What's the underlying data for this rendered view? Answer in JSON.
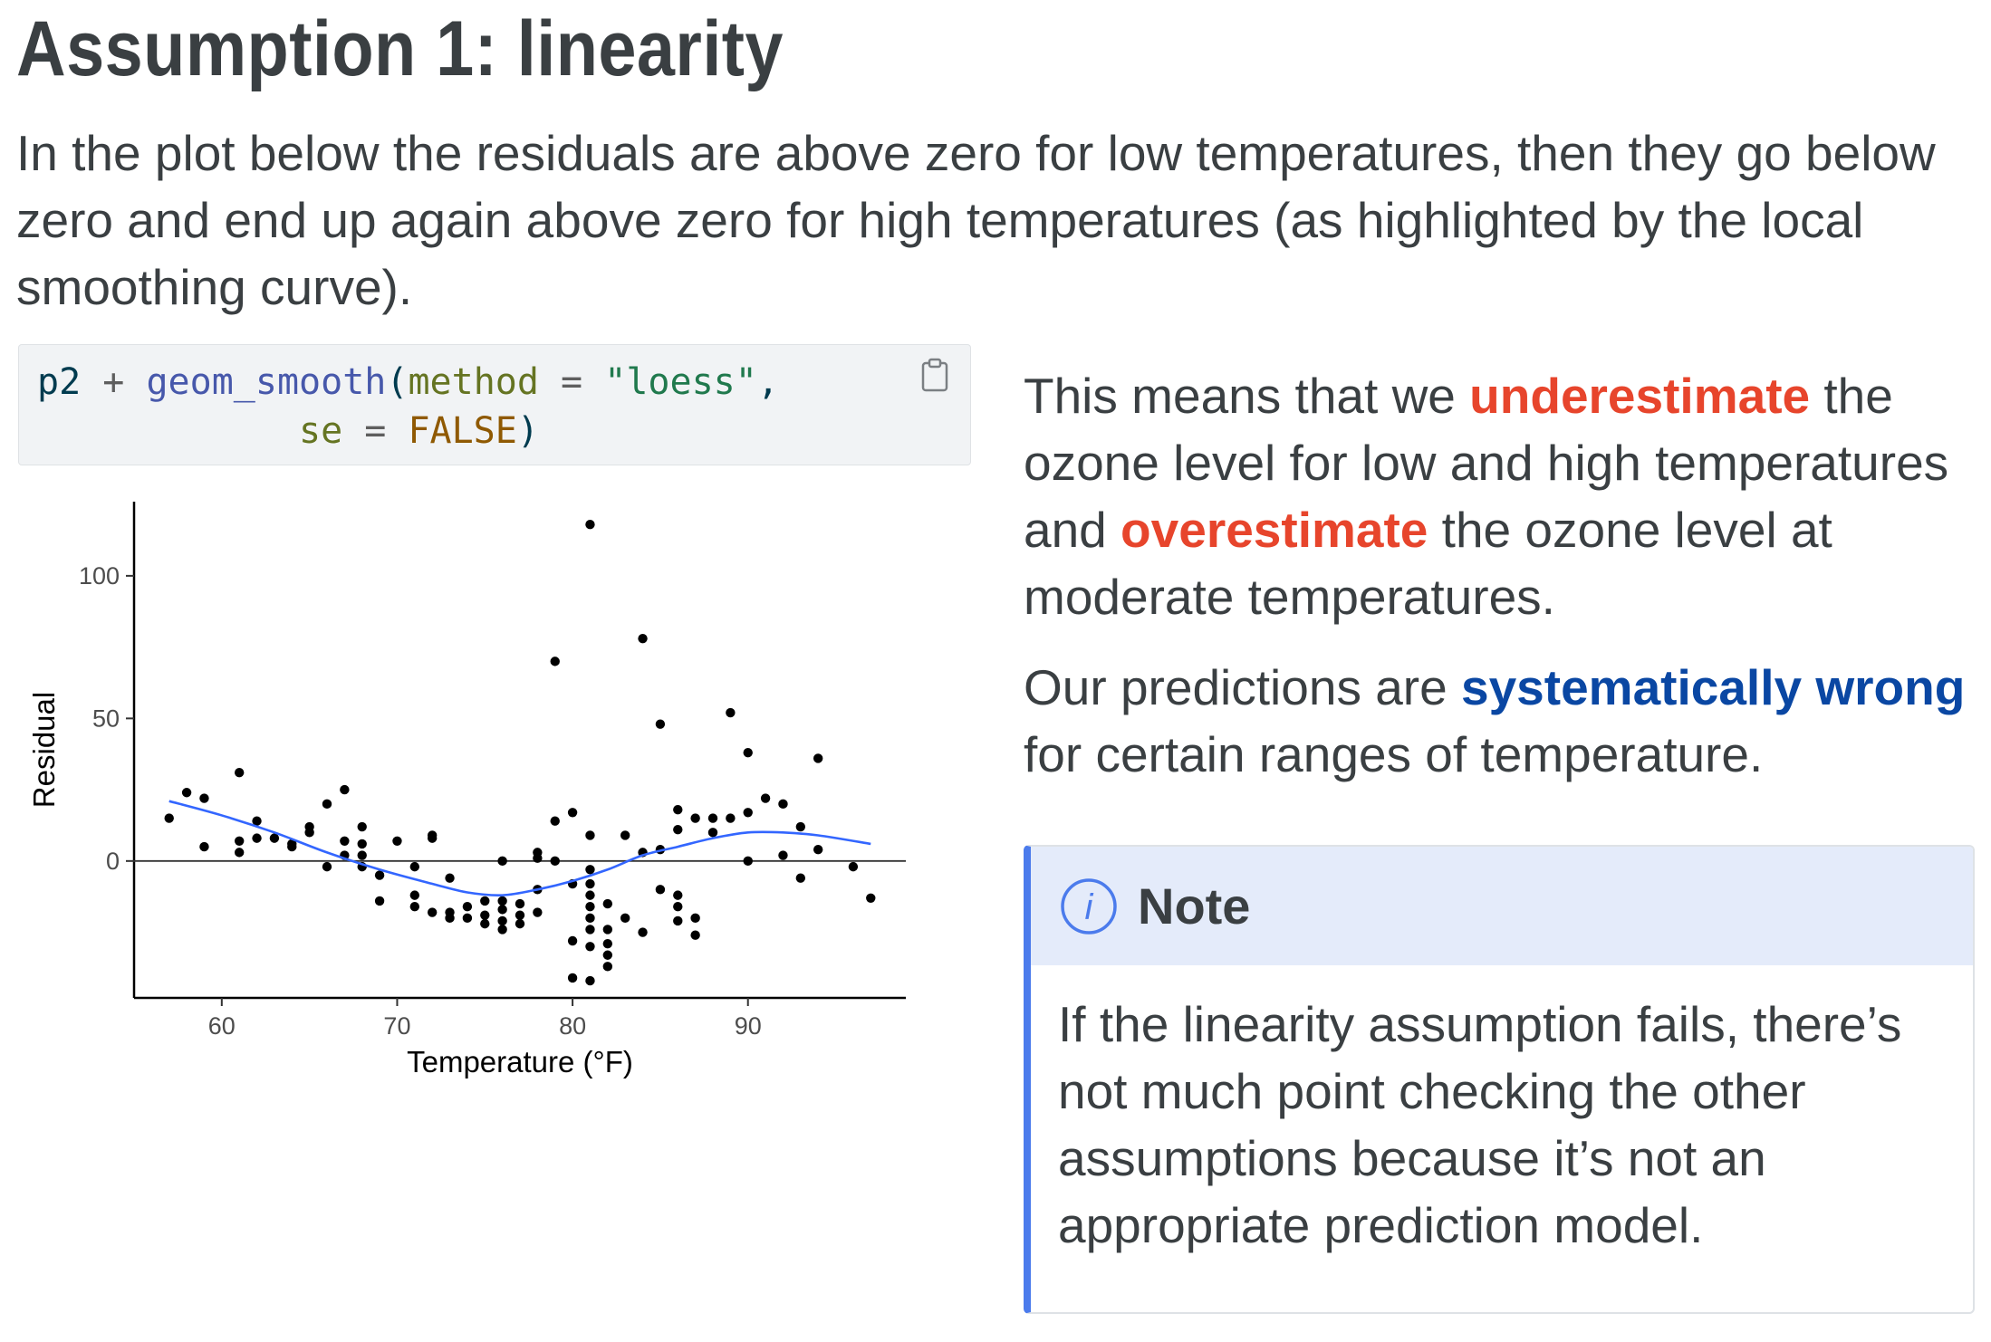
{
  "page": {
    "title": "Assumption 1: linearity",
    "intro": "In the plot below the residuals are above zero for low temperatures, then they go below zero and end up again above zero for high temperatures (as highlighted by the local smoothing curve)."
  },
  "code_block": {
    "line1": {
      "obj": "p2",
      "op": "+",
      "fn": "geom_smooth",
      "open": "(",
      "arg1": "method",
      "eq1": "=",
      "str1": "\"loess\"",
      "comma": ","
    },
    "line2": {
      "arg2": "se",
      "eq2": "=",
      "const": "FALSE",
      "close": ")"
    },
    "copy_icon": "clipboard-icon"
  },
  "explanation": {
    "p1_a": "This means that we ",
    "p1_underestimate": "underestimate",
    "p1_b": " the ozone level for low and high temperatures and ",
    "p1_overestimate": "overestimate",
    "p1_c": " the ozone level at moderate temperatures.",
    "p2_a": "Our predictions are ",
    "p2_systematic": "systematically wrong",
    "p2_b": " for certain ranges of temperature."
  },
  "note": {
    "icon": "info-icon",
    "title": "Note",
    "body": "If the linearity assumption fails, there’s not much point checking the other assumptions because it’s not an appropriate prediction model."
  },
  "colors": {
    "red_highlight": "#e7452c",
    "blue_highlight": "#0a47a3",
    "note_border": "#4b7bec",
    "note_header_bg": "#e4ebfa",
    "smooth_line": "#3366ff"
  },
  "chart_data": {
    "type": "scatter",
    "xlabel": "Temperature (°F)",
    "ylabel": "Residual",
    "xlim": [
      55,
      99
    ],
    "ylim": [
      -48,
      126
    ],
    "xticks": [
      60,
      70,
      80,
      90
    ],
    "yticks": [
      0,
      50,
      100
    ],
    "x_tick_labels": [
      "60",
      "70",
      "80",
      "90"
    ],
    "y_tick_labels": [
      "0",
      "50",
      "100"
    ],
    "reference_line_y": 0,
    "grid": false,
    "series": [
      {
        "type": "scatter",
        "points": [
          [
            57,
            15
          ],
          [
            58,
            24
          ],
          [
            59,
            22
          ],
          [
            59,
            5
          ],
          [
            61,
            31
          ],
          [
            61,
            7
          ],
          [
            61,
            3
          ],
          [
            62,
            14
          ],
          [
            62,
            8
          ],
          [
            63,
            8
          ],
          [
            64,
            5
          ],
          [
            64,
            6
          ],
          [
            65,
            10
          ],
          [
            65,
            12
          ],
          [
            66,
            20
          ],
          [
            66,
            -2
          ],
          [
            67,
            25
          ],
          [
            67,
            7
          ],
          [
            67,
            2
          ],
          [
            68,
            12
          ],
          [
            68,
            6
          ],
          [
            68,
            -2
          ],
          [
            68,
            2
          ],
          [
            69,
            -5
          ],
          [
            69,
            -14
          ],
          [
            70,
            7
          ],
          [
            71,
            -2
          ],
          [
            71,
            -12
          ],
          [
            71,
            -16
          ],
          [
            72,
            9
          ],
          [
            72,
            8
          ],
          [
            72,
            -18
          ],
          [
            73,
            -6
          ],
          [
            73,
            -18
          ],
          [
            73,
            -20
          ],
          [
            74,
            -16
          ],
          [
            74,
            -20
          ],
          [
            75,
            -14
          ],
          [
            75,
            -19
          ],
          [
            75,
            -22
          ],
          [
            76,
            0
          ],
          [
            76,
            -14
          ],
          [
            76,
            -17
          ],
          [
            76,
            -21
          ],
          [
            76,
            -24
          ],
          [
            77,
            -15
          ],
          [
            77,
            -19
          ],
          [
            77,
            -22
          ],
          [
            78,
            3
          ],
          [
            78,
            1
          ],
          [
            78,
            -10
          ],
          [
            78,
            -18
          ],
          [
            79,
            70
          ],
          [
            79,
            14
          ],
          [
            79,
            0
          ],
          [
            80,
            17
          ],
          [
            80,
            -8
          ],
          [
            80,
            -28
          ],
          [
            80,
            -41
          ],
          [
            81,
            118
          ],
          [
            81,
            9
          ],
          [
            81,
            -3
          ],
          [
            81,
            -8
          ],
          [
            81,
            -12
          ],
          [
            81,
            -16
          ],
          [
            81,
            -20
          ],
          [
            81,
            -24
          ],
          [
            81,
            -30
          ],
          [
            81,
            -42
          ],
          [
            82,
            -15
          ],
          [
            82,
            -24
          ],
          [
            82,
            -29
          ],
          [
            82,
            -33
          ],
          [
            82,
            -37
          ],
          [
            83,
            9
          ],
          [
            83,
            -20
          ],
          [
            84,
            78
          ],
          [
            84,
            3
          ],
          [
            84,
            -25
          ],
          [
            85,
            48
          ],
          [
            85,
            4
          ],
          [
            85,
            -10
          ],
          [
            86,
            18
          ],
          [
            86,
            11
          ],
          [
            86,
            -12
          ],
          [
            86,
            -16
          ],
          [
            86,
            -21
          ],
          [
            87,
            15
          ],
          [
            87,
            -20
          ],
          [
            87,
            -26
          ],
          [
            88,
            15
          ],
          [
            88,
            10
          ],
          [
            89,
            52
          ],
          [
            89,
            15
          ],
          [
            90,
            38
          ],
          [
            90,
            17
          ],
          [
            90,
            0
          ],
          [
            91,
            22
          ],
          [
            92,
            20
          ],
          [
            92,
            2
          ],
          [
            93,
            12
          ],
          [
            93,
            -6
          ],
          [
            94,
            36
          ],
          [
            94,
            4
          ],
          [
            96,
            -2
          ],
          [
            97,
            -13
          ]
        ]
      },
      {
        "type": "line",
        "points": [
          [
            57,
            21
          ],
          [
            60,
            16
          ],
          [
            63,
            10
          ],
          [
            66,
            3
          ],
          [
            69,
            -3
          ],
          [
            72,
            -8
          ],
          [
            74,
            -11
          ],
          [
            76,
            -12
          ],
          [
            78,
            -10
          ],
          [
            80,
            -7
          ],
          [
            82,
            -3
          ],
          [
            84,
            2
          ],
          [
            86,
            5
          ],
          [
            88,
            8
          ],
          [
            90,
            10
          ],
          [
            92,
            10
          ],
          [
            94,
            9
          ],
          [
            97,
            6
          ]
        ]
      }
    ]
  }
}
